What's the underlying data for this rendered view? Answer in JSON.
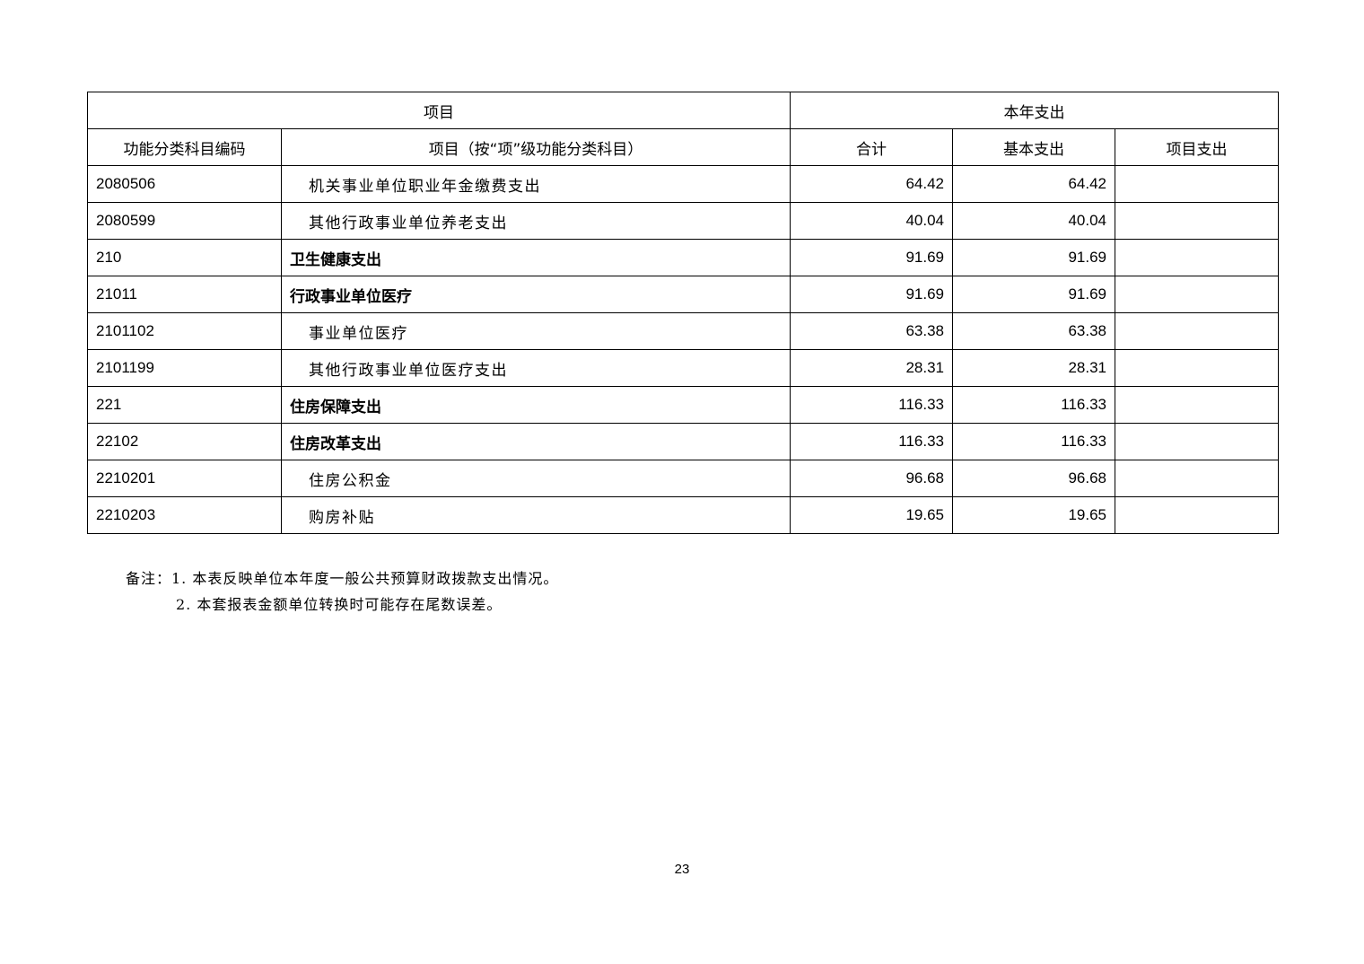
{
  "table": {
    "header_row1": {
      "item": "项目",
      "current_year": "本年支出"
    },
    "header_row2": {
      "code": "功能分类科目编码",
      "name": "项目（按“项”级功能分类科目）",
      "total": "合计",
      "basic": "基本支出",
      "project": "项目支出"
    },
    "rows": [
      {
        "code": "2080506",
        "name": "机关事业单位职业年金缴费支出",
        "total": "64.42",
        "basic": "64.42",
        "project": "",
        "level": "leaf"
      },
      {
        "code": "2080599",
        "name": "其他行政事业单位养老支出",
        "total": "40.04",
        "basic": "40.04",
        "project": "",
        "level": "leaf"
      },
      {
        "code": "210",
        "name": "卫生健康支出",
        "total": "91.69",
        "basic": "91.69",
        "project": "",
        "level": "cat"
      },
      {
        "code": "21011",
        "name": "行政事业单位医疗",
        "total": "91.69",
        "basic": "91.69",
        "project": "",
        "level": "cat"
      },
      {
        "code": "2101102",
        "name": "事业单位医疗",
        "total": "63.38",
        "basic": "63.38",
        "project": "",
        "level": "leaf"
      },
      {
        "code": "2101199",
        "name": "其他行政事业单位医疗支出",
        "total": "28.31",
        "basic": "28.31",
        "project": "",
        "level": "leaf"
      },
      {
        "code": "221",
        "name": "住房保障支出",
        "total": "116.33",
        "basic": "116.33",
        "project": "",
        "level": "cat"
      },
      {
        "code": "22102",
        "name": "住房改革支出",
        "total": "116.33",
        "basic": "116.33",
        "project": "",
        "level": "cat"
      },
      {
        "code": "2210201",
        "name": "住房公积金",
        "total": "96.68",
        "basic": "96.68",
        "project": "",
        "level": "leaf"
      },
      {
        "code": "2210203",
        "name": "购房补贴",
        "total": "19.65",
        "basic": "19.65",
        "project": "",
        "level": "leaf"
      }
    ]
  },
  "notes": {
    "line1": "备注：1. 本表反映单位本年度一般公共预算财政拨款支出情况。",
    "line2": "2. 本套报表金额单位转换时可能存在尾数误差。"
  },
  "page_number": "23"
}
